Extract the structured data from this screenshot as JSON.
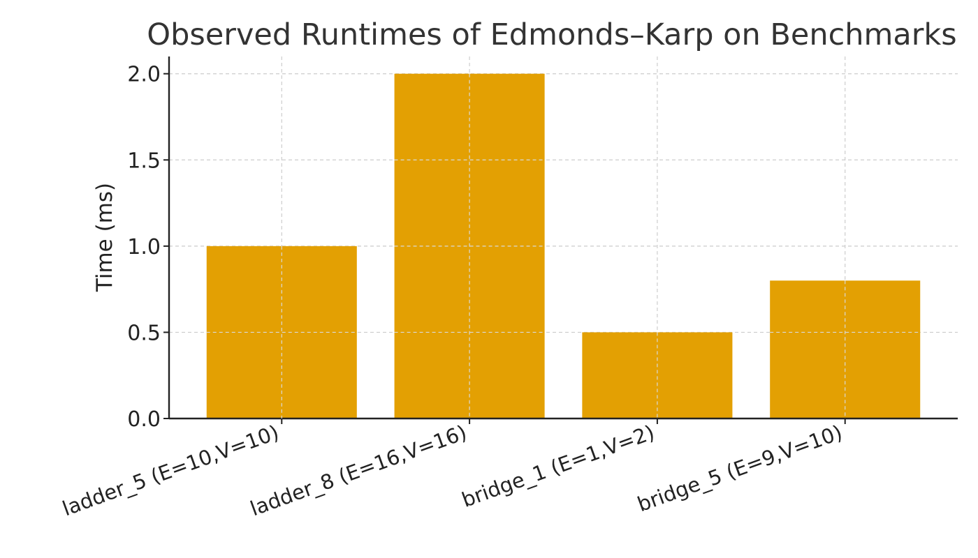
{
  "chart_data": {
    "type": "bar",
    "title": "Observed Runtimes of Edmonds–Karp on Benchmarks",
    "xlabel": "",
    "ylabel": "Time (ms)",
    "categories": [
      "ladder_5 (E=10,V=10)",
      "ladder_8 (E=16,V=16)",
      "bridge_1 (E=1,V=2)",
      "bridge_5 (E=9,V=10)"
    ],
    "values": [
      1.0,
      2.0,
      0.5,
      0.8
    ],
    "ylim": [
      0,
      2.1
    ],
    "yticks": [
      0.0,
      0.5,
      1.0,
      1.5,
      2.0
    ],
    "ytick_labels": [
      "0.0",
      "0.5",
      "1.0",
      "1.5",
      "2.0"
    ],
    "grid": true,
    "legend": "none",
    "bar_color": "#E3A003",
    "grid_color": "#cccccc",
    "axis_color": "#222222"
  }
}
